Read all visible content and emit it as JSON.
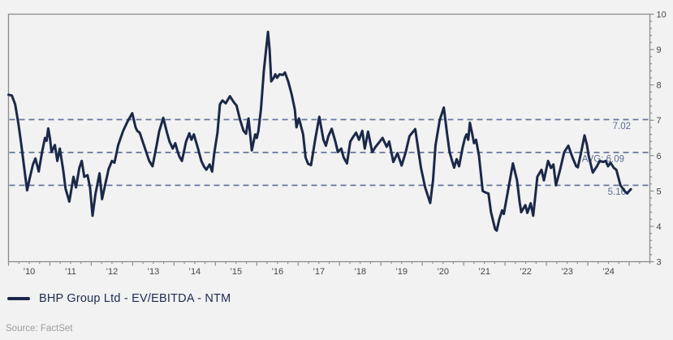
{
  "legend": {
    "label": "BHP Group Ltd - EV/EBITDA - NTM",
    "swatch_color": "#1b2849"
  },
  "source": {
    "text": "Source: FactSet"
  },
  "colors": {
    "background": "#f1f2f1",
    "series_line": "#1b2849",
    "reference_line": "#66779e",
    "reference_label": "#5d6f94",
    "axis_border": "#8a8d8a",
    "tick_label": "#434649"
  },
  "chart_data": {
    "type": "line",
    "title": "",
    "xlabel": "",
    "ylabel": "",
    "grid": false,
    "legend_position": "bottom-left",
    "x_axis": {
      "min": 2010,
      "max": 2025.5,
      "tick_labels": [
        "’10",
        "’11",
        "’12",
        "’13",
        "’14",
        "’15",
        "’16",
        "’17",
        "’18",
        "’19",
        "’20",
        "’21",
        "’22",
        "’23",
        "’24"
      ],
      "tick_positions": [
        2010.5,
        2011.5,
        2012.5,
        2013.5,
        2014.5,
        2015.5,
        2016.5,
        2017.5,
        2018.5,
        2019.5,
        2020.5,
        2021.5,
        2022.5,
        2023.5,
        2024.5
      ],
      "major_tick_years": [
        2010,
        2011,
        2012,
        2013,
        2014,
        2015,
        2016,
        2017,
        2018,
        2019,
        2020,
        2021,
        2022,
        2023,
        2024,
        2025
      ],
      "minor_tick_step": 0.25
    },
    "y_axis": {
      "min": 3,
      "max": 10,
      "ticks": [
        3,
        4,
        5,
        6,
        7,
        8,
        9,
        10
      ],
      "minor_tick_step": 0.2,
      "side": "right"
    },
    "reference_lines": [
      {
        "value": 7.02,
        "label": "7.02"
      },
      {
        "value": 6.09,
        "label": "AVG: 6.09"
      },
      {
        "value": 5.16,
        "label": "5.16"
      }
    ],
    "series": [
      {
        "name": "BHP Group Ltd - EV/EBITDA - NTM",
        "color": "#1b2849",
        "x": [
          2010.0,
          2010.08,
          2010.16,
          2010.24,
          2010.31,
          2010.39,
          2010.45,
          2010.51,
          2010.59,
          2010.65,
          2010.73,
          2010.81,
          2010.88,
          2010.92,
          2010.96,
          2011.0,
          2011.04,
          2011.12,
          2011.18,
          2011.24,
          2011.32,
          2011.38,
          2011.47,
          2011.57,
          2011.63,
          2011.71,
          2011.77,
          2011.83,
          2011.91,
          2011.97,
          2012.03,
          2012.1,
          2012.2,
          2012.26,
          2012.34,
          2012.42,
          2012.5,
          2012.56,
          2012.65,
          2012.77,
          2012.87,
          2012.99,
          2013.07,
          2013.11,
          2013.17,
          2013.27,
          2013.4,
          2013.48,
          2013.58,
          2013.64,
          2013.74,
          2013.83,
          2013.89,
          2013.97,
          2014.03,
          2014.09,
          2014.13,
          2014.19,
          2014.29,
          2014.37,
          2014.42,
          2014.48,
          2014.58,
          2014.66,
          2014.72,
          2014.78,
          2014.86,
          2014.92,
          2014.97,
          2015.05,
          2015.11,
          2015.17,
          2015.25,
          2015.35,
          2015.45,
          2015.51,
          2015.6,
          2015.68,
          2015.74,
          2015.8,
          2015.88,
          2015.96,
          2016.0,
          2016.04,
          2016.1,
          2016.17,
          2016.27,
          2016.31,
          2016.35,
          2016.41,
          2016.45,
          2016.49,
          2016.55,
          2016.63,
          2016.68,
          2016.76,
          2016.84,
          2016.92,
          2016.96,
          2017.02,
          2017.12,
          2017.18,
          2017.24,
          2017.31,
          2017.41,
          2017.51,
          2017.61,
          2017.67,
          2017.73,
          2017.81,
          2017.9,
          2017.96,
          2018.04,
          2018.1,
          2018.18,
          2018.26,
          2018.34,
          2018.4,
          2018.47,
          2018.55,
          2018.61,
          2018.69,
          2018.79,
          2018.87,
          2018.94,
          2019.04,
          2019.14,
          2019.2,
          2019.3,
          2019.4,
          2019.5,
          2019.6,
          2019.69,
          2019.83,
          2019.97,
          2020.07,
          2020.19,
          2020.26,
          2020.32,
          2020.42,
          2020.52,
          2020.6,
          2020.66,
          2020.72,
          2020.77,
          2020.83,
          2020.89,
          2020.97,
          2021.03,
          2021.07,
          2021.11,
          2021.15,
          2021.21,
          2021.25,
          2021.3,
          2021.37,
          2021.46,
          2021.54,
          2021.6,
          2021.66,
          2021.76,
          2021.8,
          2021.86,
          2021.93,
          2021.97,
          2022.07,
          2022.19,
          2022.29,
          2022.35,
          2022.39,
          2022.49,
          2022.54,
          2022.62,
          2022.68,
          2022.78,
          2022.88,
          2022.94,
          2023.04,
          2023.11,
          2023.17,
          2023.23,
          2023.33,
          2023.43,
          2023.53,
          2023.63,
          2023.72,
          2023.76,
          2023.84,
          2023.92,
          2023.98,
          2024.02,
          2024.12,
          2024.22,
          2024.29,
          2024.37,
          2024.43,
          2024.49,
          2024.55,
          2024.63,
          2024.69,
          2024.79,
          2024.89,
          2024.95,
          2025.0,
          2025.04
        ],
        "y": [
          7.72,
          7.7,
          7.45,
          6.9,
          6.3,
          5.55,
          5.02,
          5.35,
          5.75,
          5.92,
          5.55,
          6.1,
          6.5,
          6.42,
          6.77,
          6.5,
          6.1,
          6.3,
          5.85,
          6.2,
          5.6,
          5.06,
          4.7,
          5.4,
          5.1,
          5.65,
          5.85,
          5.4,
          5.45,
          5.1,
          4.3,
          4.9,
          5.5,
          4.77,
          5.2,
          5.62,
          5.85,
          5.8,
          6.3,
          6.7,
          6.95,
          7.2,
          6.8,
          6.7,
          6.65,
          6.3,
          5.85,
          5.7,
          6.3,
          6.68,
          7.07,
          6.65,
          6.4,
          6.2,
          6.35,
          6.1,
          5.97,
          5.85,
          6.4,
          6.63,
          6.45,
          6.6,
          6.2,
          5.85,
          5.7,
          5.6,
          5.75,
          5.55,
          6.05,
          6.65,
          7.45,
          7.56,
          7.48,
          7.68,
          7.5,
          7.42,
          7.0,
          6.7,
          6.62,
          7.05,
          6.15,
          6.6,
          6.5,
          6.7,
          7.3,
          8.4,
          9.5,
          9.0,
          8.1,
          8.2,
          8.3,
          8.2,
          8.3,
          8.28,
          8.35,
          8.1,
          7.75,
          7.3,
          6.8,
          7.05,
          6.6,
          5.95,
          5.77,
          5.73,
          6.45,
          7.1,
          6.45,
          6.28,
          6.55,
          6.76,
          6.4,
          6.1,
          6.2,
          5.95,
          5.78,
          6.4,
          6.55,
          6.65,
          6.45,
          6.7,
          6.2,
          6.68,
          6.1,
          6.25,
          6.35,
          6.5,
          6.25,
          6.4,
          5.82,
          6.07,
          5.72,
          6.1,
          6.55,
          6.75,
          5.65,
          5.1,
          4.66,
          5.3,
          6.3,
          7.0,
          7.36,
          6.6,
          6.1,
          5.85,
          5.66,
          5.9,
          5.7,
          6.2,
          6.5,
          6.6,
          6.45,
          6.93,
          6.6,
          6.35,
          6.45,
          6.0,
          5.0,
          4.95,
          4.93,
          4.4,
          3.92,
          3.88,
          4.2,
          4.45,
          4.35,
          5.0,
          5.78,
          5.3,
          4.7,
          4.4,
          4.6,
          4.38,
          4.65,
          4.3,
          5.4,
          5.6,
          5.3,
          5.85,
          5.65,
          5.75,
          5.16,
          5.6,
          6.1,
          6.28,
          5.95,
          5.7,
          5.67,
          6.1,
          6.57,
          6.3,
          6.0,
          5.52,
          5.7,
          5.85,
          5.82,
          5.85,
          5.7,
          5.8,
          5.65,
          5.6,
          5.16,
          5.0,
          4.93,
          5.0,
          5.05
        ]
      }
    ]
  }
}
